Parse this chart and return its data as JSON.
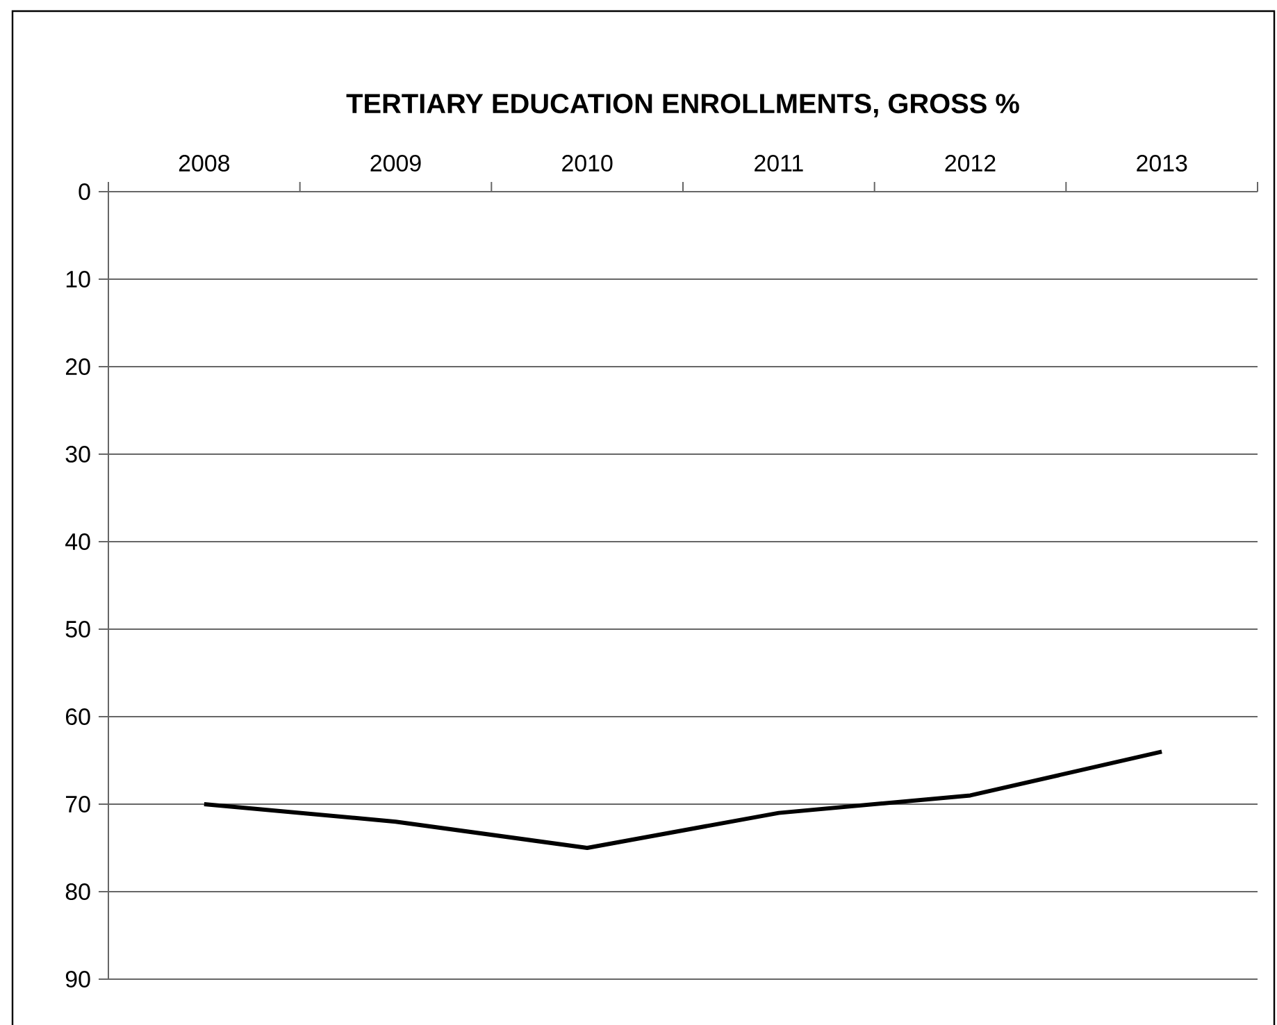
{
  "chart_data": {
    "type": "line",
    "title": "**TERTIARY EDUCATION ENROLLMENTS, GROSS %**",
    "categories": [
      "2008",
      "2009",
      "2010",
      "2011",
      "2012",
      "2013"
    ],
    "series": [
      {
        "color": "#000000",
        "values": [
          70,
          72,
          75,
          71,
          69,
          64
        ]
      }
    ],
    "ylim": [
      90,
      0
    ],
    "yticks": [
      0,
      10,
      20,
      30,
      40,
      50,
      60,
      70,
      80,
      90
    ],
    "grid": "y",
    "marker": "none",
    "line_style": "solid"
  }
}
